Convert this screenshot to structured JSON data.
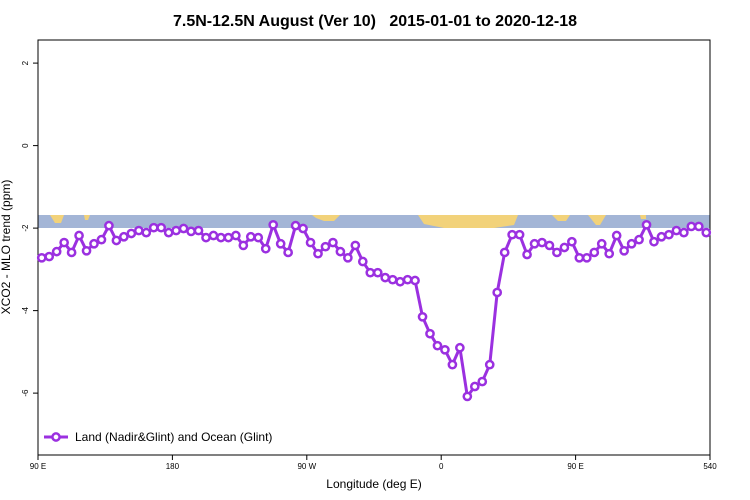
{
  "chart_data": {
    "type": "line",
    "title": "7.5N-12.5N August (Ver 10)   2015-01-01 to 2020-12-18",
    "x_label": "Longitude (deg E)",
    "y_label": "XCO2 - MLO trend (ppm)",
    "x": [
      92.5,
      97.5,
      102.5,
      107.5,
      112.5,
      117.5,
      122.5,
      127.5,
      132.5,
      137.5,
      142.5,
      147.5,
      152.5,
      157.5,
      162.5,
      167.5,
      172.5,
      177.5,
      182.5,
      187.5,
      192.5,
      197.5,
      202.5,
      207.5,
      212.5,
      217.5,
      222.5,
      227.5,
      232.5,
      237.5,
      242.5,
      247.5,
      252.5,
      257.5,
      262.5,
      267.5,
      272.5,
      277.5,
      282.5,
      287.5,
      292.5,
      297.5,
      302.5,
      307.5,
      312.5,
      317.5,
      322.5,
      327.5,
      332.5,
      337.5,
      342.5,
      347.5,
      352.5,
      357.5,
      362.5,
      367.5,
      372.5,
      377.5,
      382.5,
      387.5,
      392.5,
      397.5,
      402.5,
      407.5,
      412.5,
      417.5,
      422.5,
      427.5,
      432.5,
      437.5,
      442.5,
      447.5,
      452.5,
      457.5,
      462.5,
      467.5,
      472.5,
      477.5,
      482.5,
      487.5,
      492.5,
      497.5,
      502.5,
      507.5,
      512.5,
      517.5,
      522.5,
      527.5,
      532.5,
      537.5
    ],
    "series": [
      {
        "name": "Land (Nadir&Glint) and Ocean (Glint)",
        "color": "#9b30e0",
        "values": [
          -2.72,
          -2.69,
          -2.57,
          -2.35,
          -2.59,
          -2.18,
          -2.55,
          -2.38,
          -2.28,
          -1.94,
          -2.3,
          -2.21,
          -2.13,
          -2.06,
          -2.11,
          -1.99,
          -1.99,
          -2.11,
          -2.06,
          -2.01,
          -2.08,
          -2.06,
          -2.23,
          -2.18,
          -2.23,
          -2.23,
          -2.18,
          -2.42,
          -2.21,
          -2.23,
          -2.5,
          -1.92,
          -2.38,
          -2.59,
          -1.94,
          -2.01,
          -2.35,
          -2.62,
          -2.45,
          -2.35,
          -2.57,
          -2.72,
          -2.42,
          -2.81,
          -3.08,
          -3.08,
          -3.2,
          -3.25,
          -3.3,
          -3.25,
          -3.27,
          -4.15,
          -4.56,
          -4.85,
          -4.95,
          -5.31,
          -4.9,
          -6.08,
          -5.84,
          -5.72,
          -5.31,
          -3.56,
          -2.59,
          -2.16,
          -2.16,
          -2.64,
          -2.38,
          -2.35,
          -2.42,
          -2.59,
          -2.47,
          -2.33,
          -2.72,
          -2.72,
          -2.59,
          -2.38,
          -2.62,
          -2.18,
          -2.55,
          -2.38,
          -2.28,
          -1.92,
          -2.33,
          -2.21,
          -2.16,
          -2.06,
          -2.11,
          -1.96,
          -1.96,
          -2.11
        ]
      }
    ],
    "xlim": [
      90,
      540
    ],
    "xticks": [
      {
        "value": 90,
        "label": "90 E"
      },
      180,
      {
        "value": 270,
        "label": "90 W"
      },
      {
        "value": 360,
        "label": "0"
      },
      {
        "value": 450,
        "label": "90 E"
      },
      540
    ],
    "ylim": [
      -7.5,
      2.56
    ],
    "yticks": [
      2,
      0,
      -2,
      -4,
      -6
    ],
    "grid": false,
    "legend": "bottom-left"
  }
}
